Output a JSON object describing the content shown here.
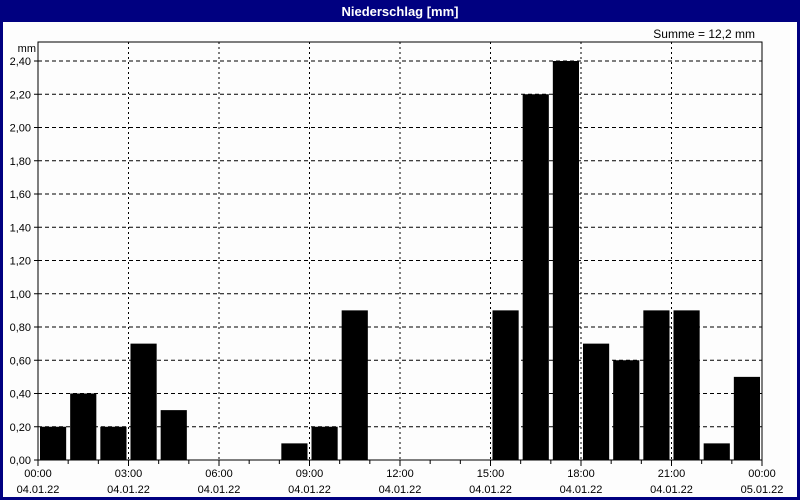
{
  "window": {
    "title": "Niederschlag [mm]"
  },
  "summary": "Summe = 12,2 mm",
  "colors": {
    "titlebar_bg": "#000080",
    "titlebar_text": "#ffffff",
    "window_border": "#000080",
    "plot_bg": "#fdfdfd",
    "bar": "#000000",
    "grid": "#000000",
    "text": "#000000"
  },
  "chart_data": {
    "type": "bar",
    "title": "Niederschlag [mm]",
    "ylabel": "mm",
    "xlabel": "",
    "ylim": [
      0,
      2.5
    ],
    "ytick_step": 0.2,
    "ytick_labels": [
      "0,00",
      "0,20",
      "0,40",
      "0,60",
      "0,80",
      "1,00",
      "1,20",
      "1,40",
      "1,60",
      "1,80",
      "2,00",
      "2,20",
      "2,40"
    ],
    "x_hours": 24,
    "values": [
      0.2,
      0.4,
      0.2,
      0.7,
      0.3,
      0,
      0,
      0,
      0.1,
      0.2,
      0.9,
      0,
      0,
      0,
      0,
      0.9,
      2.2,
      2.4,
      0.7,
      0.6,
      0.9,
      0.9,
      0.1,
      0.5
    ],
    "sum_mm": "12,2",
    "xticks": [
      {
        "hour": 0,
        "time": "00:00",
        "date": "04.01.22"
      },
      {
        "hour": 3,
        "time": "03:00",
        "date": "04.01.22"
      },
      {
        "hour": 6,
        "time": "06:00",
        "date": "04.01.22"
      },
      {
        "hour": 9,
        "time": "09:00",
        "date": "04.01.22"
      },
      {
        "hour": 12,
        "time": "12:00",
        "date": "04.01.22"
      },
      {
        "hour": 15,
        "time": "15:00",
        "date": "04.01.22"
      },
      {
        "hour": 18,
        "time": "18:00",
        "date": "04.01.22"
      },
      {
        "hour": 21,
        "time": "21:00",
        "date": "04.01.22"
      },
      {
        "hour": 24,
        "time": "00:00",
        "date": "05.01.22"
      }
    ],
    "grid": "dashed",
    "legend": "none"
  }
}
